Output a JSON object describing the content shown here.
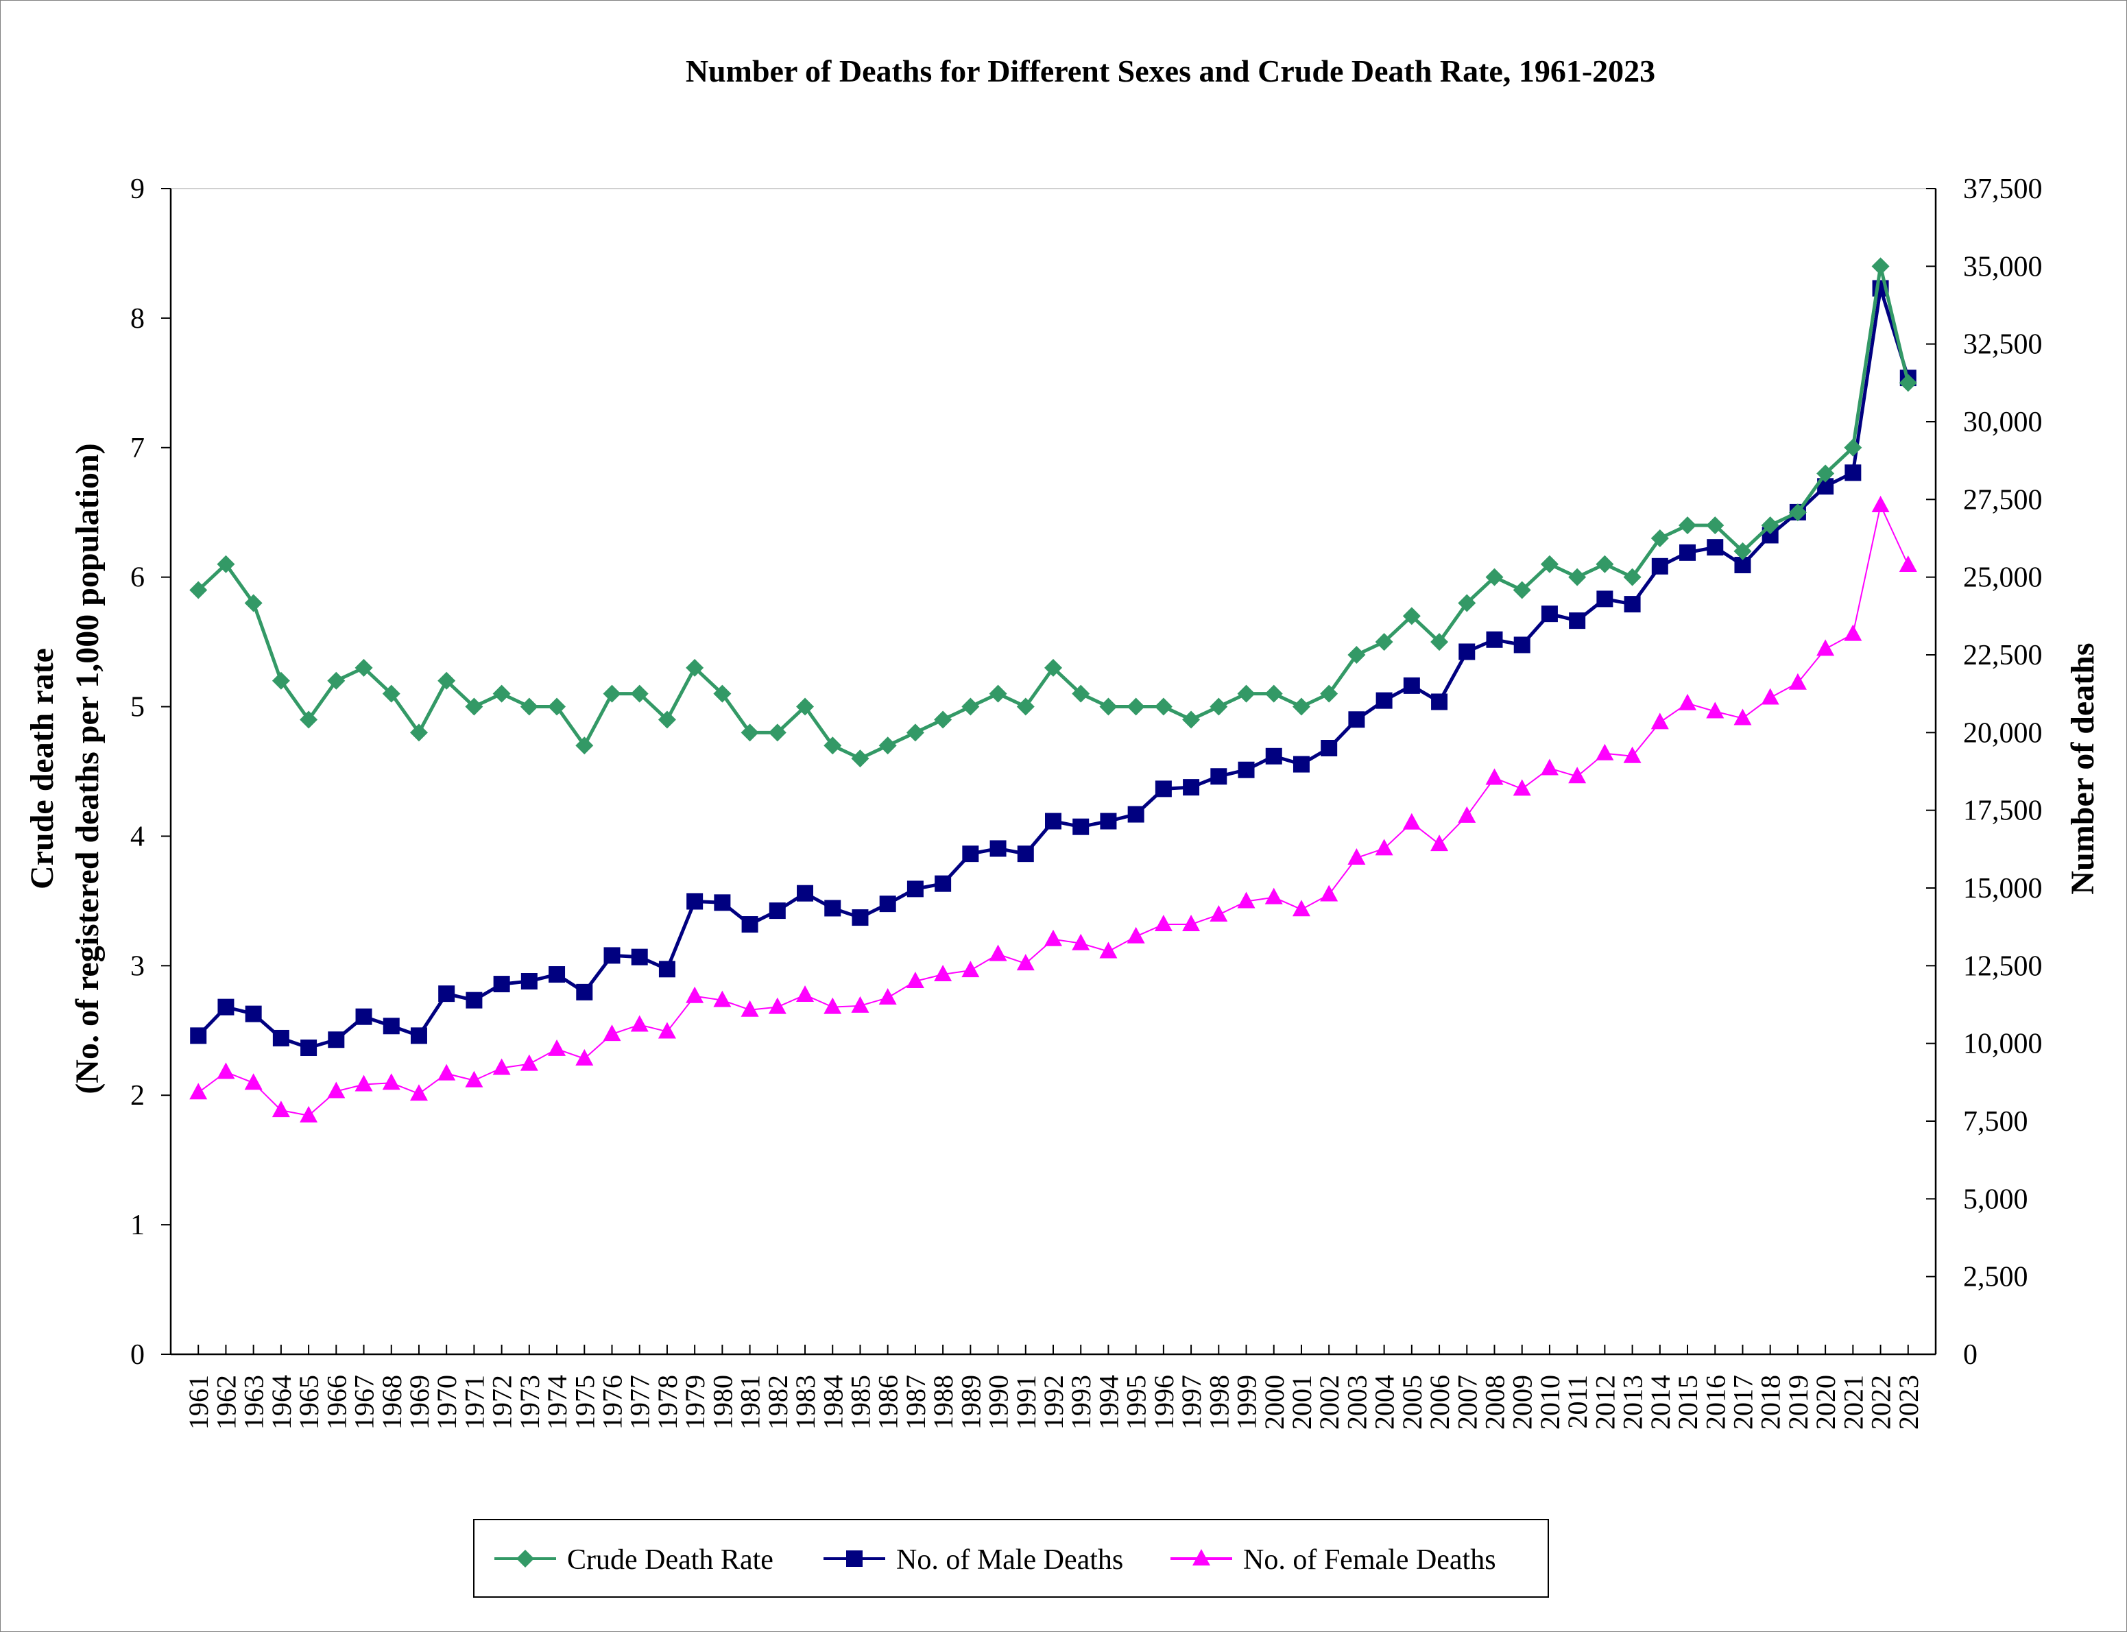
{
  "chart_data": {
    "type": "line",
    "title": "Number of Deaths for Different Sexes and Crude Death Rate, 1961-2023",
    "ylabel_left": [
      "Crude death rate",
      "(No. of registered deaths per 1,000 population)"
    ],
    "ylabel_right": "Number of deaths",
    "xlabel": "",
    "ylim_left": [
      0,
      9
    ],
    "yticks_left": [
      "0",
      "1",
      "2",
      "3",
      "4",
      "5",
      "6",
      "7",
      "8",
      "9"
    ],
    "ylim_right": [
      0,
      37500
    ],
    "yticks_right": [
      "0",
      "2,500",
      "5,000",
      "7,500",
      "10,000",
      "12,500",
      "15,000",
      "17,500",
      "20,000",
      "22,500",
      "25,000",
      "27,500",
      "30,000",
      "32,500",
      "35,000",
      "37,500"
    ],
    "grid": false,
    "legend_placement": "bottom",
    "categories": [
      "1961",
      "1962",
      "1963",
      "1964",
      "1965",
      "1966",
      "1967",
      "1968",
      "1969",
      "1970",
      "1971",
      "1972",
      "1973",
      "1974",
      "1975",
      "1976",
      "1977",
      "1978",
      "1979",
      "1980",
      "1981",
      "1982",
      "1983",
      "1984",
      "1985",
      "1986",
      "1987",
      "1988",
      "1989",
      "1990",
      "1991",
      "1992",
      "1993",
      "1994",
      "1995",
      "1996",
      "1997",
      "1998",
      "1999",
      "2000",
      "2001",
      "2002",
      "2003",
      "2004",
      "2005",
      "2006",
      "2007",
      "2008",
      "2009",
      "2010",
      "2011",
      "2012",
      "2013",
      "2014",
      "2015",
      "2016",
      "2017",
      "2018",
      "2019",
      "2020",
      "2021",
      "2022",
      "2023"
    ],
    "series": [
      {
        "name": "Crude Death Rate",
        "axis": "left",
        "color": "#339966",
        "marker": "diamond",
        "values": [
          5.9,
          6.1,
          5.8,
          5.2,
          4.9,
          5.2,
          5.3,
          5.1,
          4.8,
          5.2,
          5.0,
          5.1,
          5.0,
          5.0,
          4.7,
          5.1,
          5.1,
          4.9,
          5.3,
          5.1,
          4.8,
          4.8,
          5.0,
          4.7,
          4.6,
          4.7,
          4.8,
          4.9,
          5.0,
          5.1,
          5.0,
          5.3,
          5.1,
          5.0,
          5.0,
          5.0,
          4.9,
          5.0,
          5.1,
          5.1,
          5.0,
          5.1,
          5.4,
          5.5,
          5.7,
          5.5,
          5.8,
          6.0,
          5.9,
          6.1,
          6.0,
          6.1,
          6.0,
          6.3,
          6.4,
          6.4,
          6.2,
          6.4,
          6.5,
          6.8,
          7.0,
          8.4,
          7.5
        ]
      },
      {
        "name": "No. of Male Deaths",
        "axis": "right",
        "color": "#000080",
        "marker": "square",
        "values": [
          10250,
          11170,
          10950,
          10170,
          9860,
          10120,
          10860,
          10560,
          10250,
          11600,
          11390,
          11910,
          12000,
          12220,
          11650,
          12830,
          12780,
          12390,
          14570,
          14530,
          13830,
          14270,
          14830,
          14350,
          14050,
          14490,
          14970,
          15140,
          16100,
          16270,
          16100,
          17150,
          16970,
          17150,
          17370,
          18190,
          18240,
          18590,
          18800,
          19240,
          18980,
          19500,
          20420,
          21030,
          21510,
          20990,
          22600,
          22990,
          22820,
          23820,
          23600,
          24300,
          24130,
          25350,
          25790,
          25960,
          25390,
          26350,
          27090,
          27920,
          28360,
          34290,
          31410
        ]
      },
      {
        "name": "No. of Female Deaths",
        "axis": "right",
        "color": "#FF00FF",
        "marker": "triangle",
        "values": [
          8420,
          9080,
          8730,
          7850,
          7680,
          8460,
          8680,
          8730,
          8380,
          9030,
          8810,
          9210,
          9340,
          9820,
          9510,
          10300,
          10600,
          10380,
          11520,
          11390,
          11080,
          11170,
          11560,
          11170,
          11210,
          11470,
          12000,
          12220,
          12350,
          12870,
          12570,
          13350,
          13220,
          12960,
          13440,
          13830,
          13830,
          14140,
          14570,
          14700,
          14310,
          14790,
          15970,
          16270,
          17100,
          16410,
          17320,
          18540,
          18190,
          18850,
          18590,
          19330,
          19240,
          20330,
          20940,
          20680,
          20460,
          21120,
          21600,
          22690,
          23170,
          27310,
          25390
        ]
      }
    ]
  }
}
